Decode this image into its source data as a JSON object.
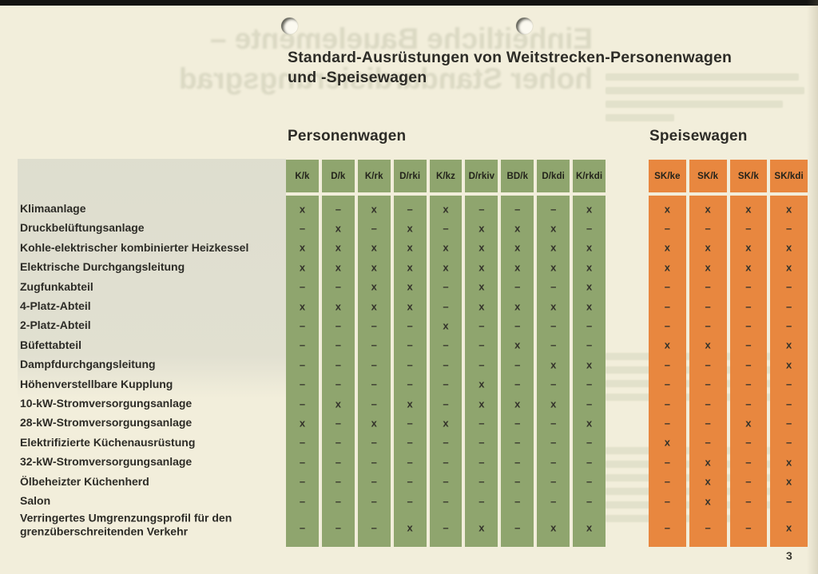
{
  "page": {
    "title_line1": "Standard-Ausrüstungen von Weitstrecken-Personenwagen",
    "title_line2": "und -Speisewagen",
    "page_number": "3"
  },
  "bleed_through": {
    "line1": "Einheitliche Bauelemente –",
    "line2": "hoher Standardisierungsgrad"
  },
  "colors": {
    "paper": "#f2eedb",
    "green": "#8fa56e",
    "orange": "#e8873f",
    "ink": "#2d2c27"
  },
  "row_labels": [
    "Klimaanlage",
    "Druckbelüftungsanlage",
    "Kohle-elektrischer kombinierter Heizkessel",
    "Elektrische Durchgangsleitung",
    "Zugfunkabteil",
    "4-Platz-Abteil",
    "2-Platz-Abteil",
    "Büfettabteil",
    "Dampfdurchgangsleitung",
    "Höhenverstellbare Kupplung",
    "10-kW-Stromversorgungsanlage",
    "28-kW-Stromversorgungsanlage",
    "Elektrifizierte Küchenausrüstung",
    "32-kW-Stromversorgungsanlage",
    "Ölbeheizter Küchenherd",
    "Salon",
    "Verringertes Umgrenzungsprofil für den\ngrenzüberschreitenden Verkehr"
  ],
  "tables": [
    {
      "title": "Personenwagen",
      "color": "#8fa56e",
      "columns": [
        "K/k",
        "D/k",
        "K/rk",
        "D/rki",
        "K/kz",
        "D/rkiv",
        "BD/k",
        "D/kdi",
        "K/rkdi"
      ],
      "rows": [
        [
          "x",
          "–",
          "x",
          "–",
          "x",
          "–",
          "–",
          "–",
          "x"
        ],
        [
          "–",
          "x",
          "–",
          "x",
          "–",
          "x",
          "x",
          "x",
          "–"
        ],
        [
          "x",
          "x",
          "x",
          "x",
          "x",
          "x",
          "x",
          "x",
          "x"
        ],
        [
          "x",
          "x",
          "x",
          "x",
          "x",
          "x",
          "x",
          "x",
          "x"
        ],
        [
          "–",
          "–",
          "x",
          "x",
          "–",
          "x",
          "–",
          "–",
          "x"
        ],
        [
          "x",
          "x",
          "x",
          "x",
          "–",
          "x",
          "x",
          "x",
          "x"
        ],
        [
          "–",
          "–",
          "–",
          "–",
          "x",
          "–",
          "–",
          "–",
          "–"
        ],
        [
          "–",
          "–",
          "–",
          "–",
          "–",
          "–",
          "x",
          "–",
          "–"
        ],
        [
          "–",
          "–",
          "–",
          "–",
          "–",
          "–",
          "–",
          "x",
          "x"
        ],
        [
          "–",
          "–",
          "–",
          "–",
          "–",
          "x",
          "–",
          "–",
          "–"
        ],
        [
          "–",
          "x",
          "–",
          "x",
          "–",
          "x",
          "x",
          "x",
          "–"
        ],
        [
          "x",
          "–",
          "x",
          "–",
          "x",
          "–",
          "–",
          "–",
          "x"
        ],
        [
          "–",
          "–",
          "–",
          "–",
          "–",
          "–",
          "–",
          "–",
          "–"
        ],
        [
          "–",
          "–",
          "–",
          "–",
          "–",
          "–",
          "–",
          "–",
          "–"
        ],
        [
          "–",
          "–",
          "–",
          "–",
          "–",
          "–",
          "–",
          "–",
          "–"
        ],
        [
          "–",
          "–",
          "–",
          "–",
          "–",
          "–",
          "–",
          "–",
          "–"
        ],
        [
          "–",
          "–",
          "–",
          "x",
          "–",
          "x",
          "–",
          "x",
          "x"
        ]
      ]
    },
    {
      "title": "Speisewagen",
      "color": "#e8873f",
      "columns": [
        "SK/ke",
        "SK/k",
        "SK/k",
        "SK/kdi"
      ],
      "rows": [
        [
          "x",
          "x",
          "x",
          "x"
        ],
        [
          "–",
          "–",
          "–",
          "–"
        ],
        [
          "x",
          "x",
          "x",
          "x"
        ],
        [
          "x",
          "x",
          "x",
          "x"
        ],
        [
          "–",
          "–",
          "–",
          "–"
        ],
        [
          "–",
          "–",
          "–",
          "–"
        ],
        [
          "–",
          "–",
          "–",
          "–"
        ],
        [
          "x",
          "x",
          "–",
          "x"
        ],
        [
          "–",
          "–",
          "–",
          "x"
        ],
        [
          "–",
          "–",
          "–",
          "–"
        ],
        [
          "–",
          "–",
          "–",
          "–"
        ],
        [
          "–",
          "–",
          "x",
          "–"
        ],
        [
          "x",
          "–",
          "–",
          "–"
        ],
        [
          "–",
          "x",
          "–",
          "x"
        ],
        [
          "–",
          "x",
          "–",
          "x"
        ],
        [
          "–",
          "x",
          "–",
          "–"
        ],
        [
          "–",
          "–",
          "–",
          "x"
        ]
      ]
    }
  ]
}
